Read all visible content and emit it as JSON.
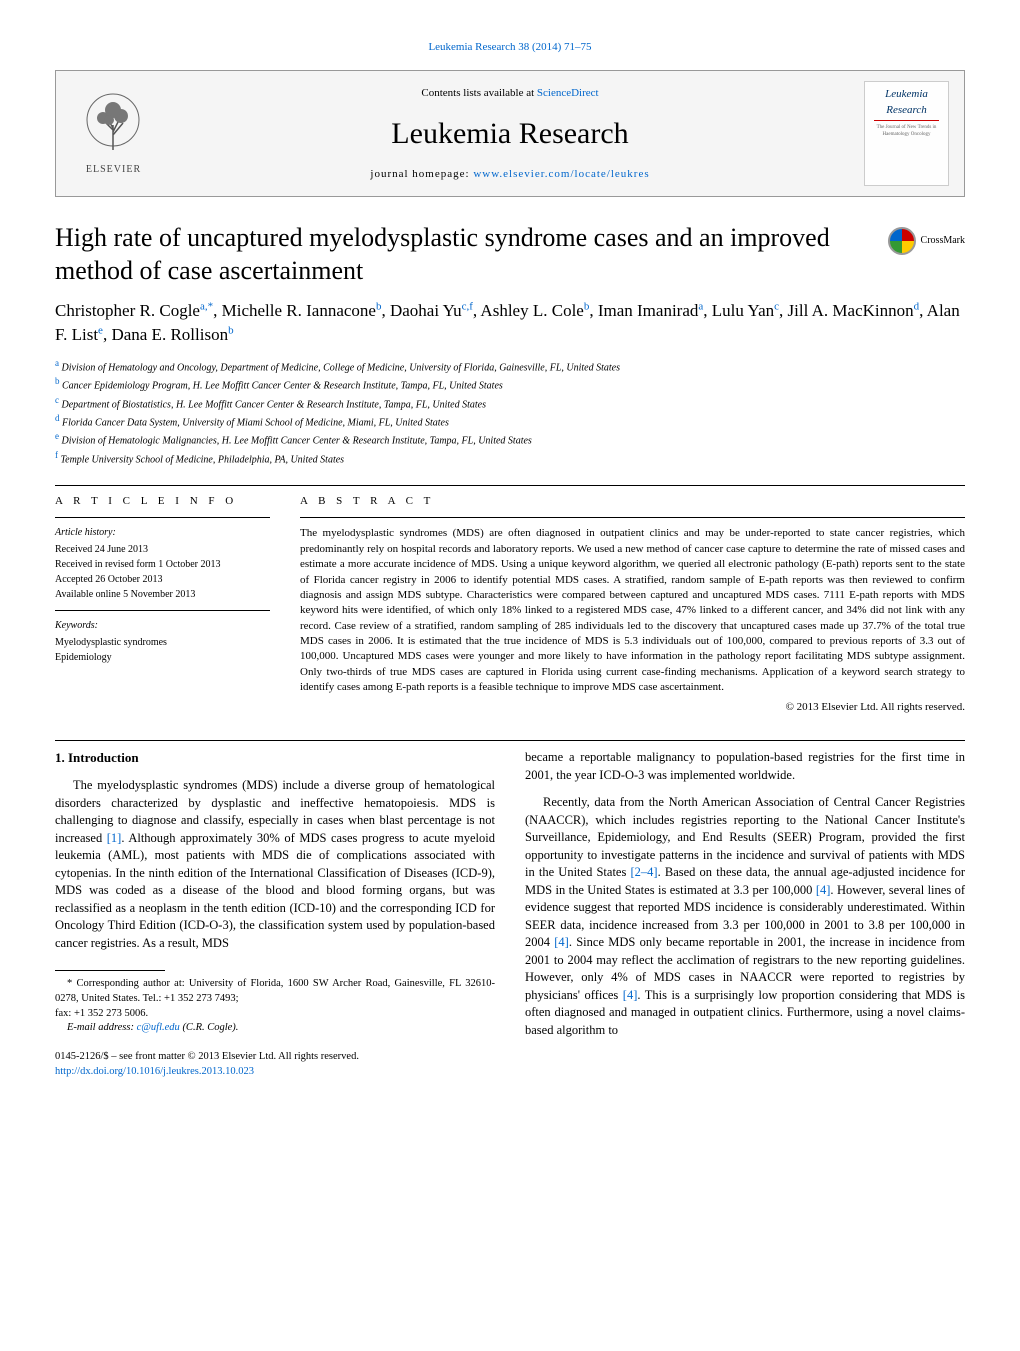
{
  "top_link": "Leukemia Research 38 (2014) 71–75",
  "header": {
    "contents_prefix": "Contents lists available at ",
    "contents_link": "ScienceDirect",
    "journal_name": "Leukemia Research",
    "homepage_prefix": "journal homepage: ",
    "homepage_url": "www.elsevier.com/locate/leukres",
    "elsevier_label": "ELSEVIER",
    "cover_title": "Leukemia Research"
  },
  "crossmark_label": "CrossMark",
  "title": "High rate of uncaptured myelodysplastic syndrome cases and an improved method of case ascertainment",
  "authors_html": "Christopher R. Cogle|a,*|, Michelle R. Iannacone|b|, Daohai Yu|c,f|, Ashley L. Cole|b|, Iman Imanirad|a|, Lulu Yan|c|, Jill A. MacKinnon|d|, Alan F. List|e|, Dana E. Rollison|b|",
  "affiliations": [
    {
      "sup": "a",
      "text": "Division of Hematology and Oncology, Department of Medicine, College of Medicine, University of Florida, Gainesville, FL, United States"
    },
    {
      "sup": "b",
      "text": "Cancer Epidemiology Program, H. Lee Moffitt Cancer Center & Research Institute, Tampa, FL, United States"
    },
    {
      "sup": "c",
      "text": "Department of Biostatistics, H. Lee Moffitt Cancer Center & Research Institute, Tampa, FL, United States"
    },
    {
      "sup": "d",
      "text": "Florida Cancer Data System, University of Miami School of Medicine, Miami, FL, United States"
    },
    {
      "sup": "e",
      "text": "Division of Hematologic Malignancies, H. Lee Moffitt Cancer Center & Research Institute, Tampa, FL, United States"
    },
    {
      "sup": "f",
      "text": "Temple University School of Medicine, Philadelphia, PA, United States"
    }
  ],
  "article_info": {
    "heading": "A R T I C L E   I N F O",
    "history_label": "Article history:",
    "received": "Received 24 June 2013",
    "revised": "Received in revised form 1 October 2013",
    "accepted": "Accepted 26 October 2013",
    "online": "Available online 5 November 2013",
    "keywords_label": "Keywords:",
    "kw1": "Myelodysplastic syndromes",
    "kw2": "Epidemiology"
  },
  "abstract": {
    "heading": "A B S T R A C T",
    "text": "The myelodysplastic syndromes (MDS) are often diagnosed in outpatient clinics and may be under-reported to state cancer registries, which predominantly rely on hospital records and laboratory reports. We used a new method of cancer case capture to determine the rate of missed cases and estimate a more accurate incidence of MDS. Using a unique keyword algorithm, we queried all electronic pathology (E-path) reports sent to the state of Florida cancer registry in 2006 to identify potential MDS cases. A stratified, random sample of E-path reports was then reviewed to confirm diagnosis and assign MDS subtype. Characteristics were compared between captured and uncaptured MDS cases. 7111 E-path reports with MDS keyword hits were identified, of which only 18% linked to a registered MDS case, 47% linked to a different cancer, and 34% did not link with any record. Case review of a stratified, random sampling of 285 individuals led to the discovery that uncaptured cases made up 37.7% of the total true MDS cases in 2006. It is estimated that the true incidence of MDS is 5.3 individuals out of 100,000, compared to previous reports of 3.3 out of 100,000. Uncaptured MDS cases were younger and more likely to have information in the pathology report facilitating MDS subtype assignment. Only two-thirds of true MDS cases are captured in Florida using current case-finding mechanisms. Application of a keyword search strategy to identify cases among E-path reports is a feasible technique to improve MDS case ascertainment.",
    "copyright": "© 2013 Elsevier Ltd. All rights reserved."
  },
  "body": {
    "section_heading": "1.  Introduction",
    "left_p1": "The myelodysplastic syndromes (MDS) include a diverse group of hematological disorders characterized by dysplastic and ineffective hematopoiesis. MDS is challenging to diagnose and classify, especially in cases when blast percentage is not increased ",
    "left_ref1": "[1]",
    "left_p1b": ". Although approximately 30% of MDS cases progress to acute myeloid leukemia (AML), most patients with MDS die of complications associated with cytopenias. In the ninth edition of the International Classification of Diseases (ICD-9), MDS was coded as a disease of the blood and blood forming organs, but was reclassified as a neoplasm in the tenth edition (ICD-10) and the corresponding ICD for Oncology Third Edition (ICD-O-3), the classification system used by population-based cancer registries. As a result, MDS",
    "right_p1": "became a reportable malignancy to population-based registries for the first time in 2001, the year ICD-O-3 was implemented worldwide.",
    "right_p2a": "Recently, data from the North American Association of Central Cancer Registries (NAACCR), which includes registries reporting to the National Cancer Institute's Surveillance, Epidemiology, and End Results (SEER) Program, provided the first opportunity to investigate patterns in the incidence and survival of patients with MDS in the United States ",
    "right_ref2": "[2–4]",
    "right_p2b": ". Based on these data, the annual age-adjusted incidence for MDS in the United States is estimated at 3.3 per 100,000 ",
    "right_ref3": "[4]",
    "right_p2c": ". However, several lines of evidence suggest that reported MDS incidence is considerably underestimated. Within SEER data, incidence increased from 3.3 per 100,000 in 2001 to 3.8 per 100,000 in 2004 ",
    "right_ref4": "[4]",
    "right_p2d": ". Since MDS only became reportable in 2001, the increase in incidence from 2001 to 2004 may reflect the acclimation of registrars to the new reporting guidelines. However, only 4% of MDS cases in NAACCR were reported to registries by physicians' offices ",
    "right_ref5": "[4]",
    "right_p2e": ". This is a surprisingly low proportion considering that MDS is often diagnosed and managed in outpatient clinics. Furthermore, using a novel claims-based algorithm to"
  },
  "footnote": {
    "corr_label": "* Corresponding author at: University of Florida, 1600 SW Archer Road, Gainesville, FL 32610-0278, United States. Tel.: +1 352 273 7493;",
    "fax": "fax: +1 352 273 5006.",
    "email_label": "E-mail address: ",
    "email": "c@ufl.edu",
    "email_suffix": " (C.R. Cogle)."
  },
  "bottom": {
    "issn": "0145-2126/$ – see front matter © 2013 Elsevier Ltd. All rights reserved.",
    "doi": "http://dx.doi.org/10.1016/j.leukres.2013.10.023"
  },
  "colors": {
    "link": "#0066cc",
    "text": "#000000",
    "rule": "#000000"
  }
}
